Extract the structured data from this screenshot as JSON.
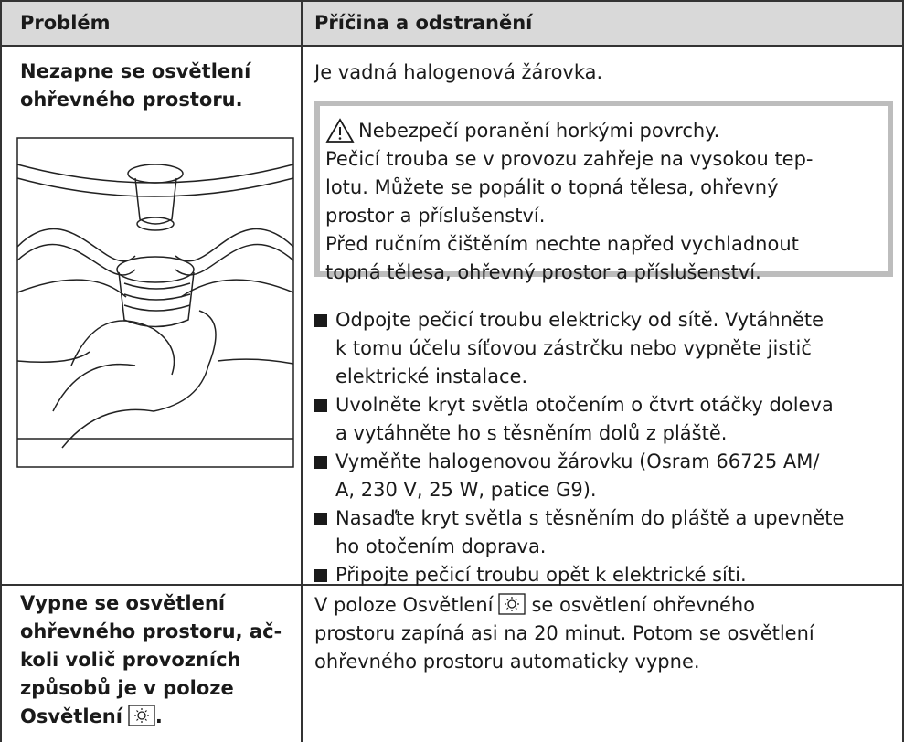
{
  "header": {
    "problem": "Problém",
    "cause": "Příčina a odstranění"
  },
  "rows": [
    {
      "problem": [
        "Nezapne se osvětlení",
        "ohřevného prostoru."
      ],
      "cause": "Je vadná halogenová žárovka.",
      "warning": {
        "title": "Nebezpečí poranění horkými povrchy.",
        "lines": [
          "Pečicí trouba se v provozu zahřeje na vysokou tep-",
          "lotu. Můžete se popálit o topná tělesa, ohřevný",
          "prostor a příslušenství.",
          "Před ručním čištěním nechte napřed vychladnout",
          "topná tělesa, ohřevný prostor a příslušenství."
        ]
      },
      "steps": [
        [
          "Odpojte pečicí troubu elektricky od sítě. Vytáhněte",
          "k tomu účelu síťovou zástrčku nebo vypněte jistič",
          "elektrické instalace."
        ],
        [
          "Uvolněte kryt světla otočením o čtvrt otáčky doleva",
          "a vytáhněte ho s těsněním dolů z pláště."
        ],
        [
          "Vyměňte halogenovou žárovku (Osram 66725 AM/",
          "A, 230 V, 25 W, patice G9)."
        ],
        [
          "Nasaďte kryt světla s těsněním do pláště a upevněte",
          "ho otočením doprava."
        ],
        [
          "Připojte pečicí troubu opět k elektrické síti."
        ]
      ]
    },
    {
      "problem": [
        "Vypne se osvětlení",
        "ohřevného prostoru, ač-",
        "koli volič provozních",
        "způsobů je v poloze"
      ],
      "problem_last": {
        "before": "Osvětlení",
        "after": "."
      },
      "cause_first": {
        "before": "V poloze Osvětlení",
        "after": "se osvětlení ohřevného"
      },
      "cause": [
        "prostoru zapíná asi na 20 minut. Potom se osvětlení",
        "ohřevného prostoru automaticky vypne."
      ]
    }
  ]
}
